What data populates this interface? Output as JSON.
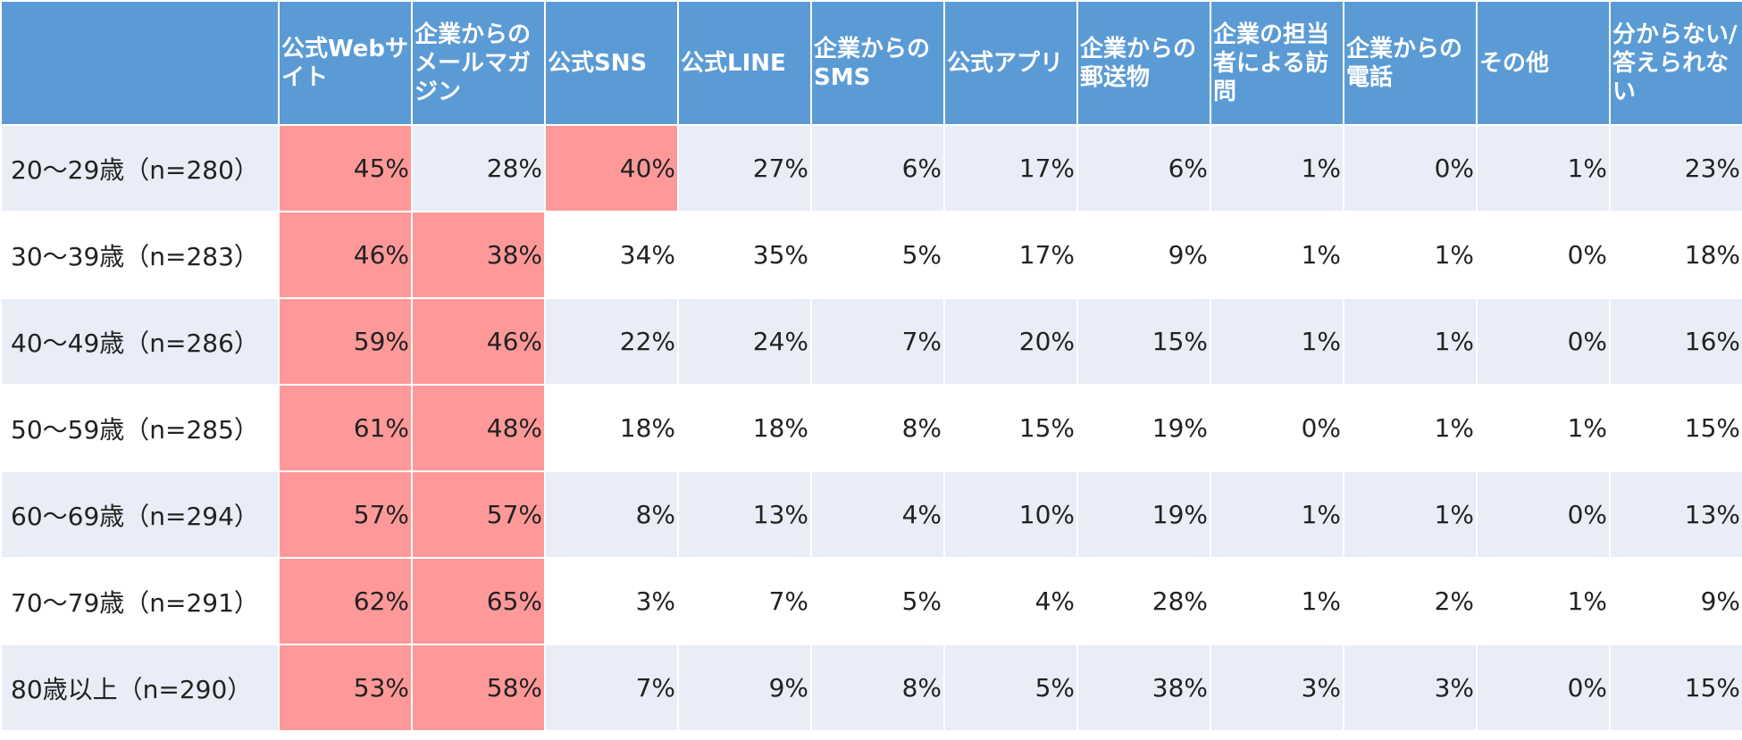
{
  "chart_data": {
    "type": "table",
    "highlight_color": "#ff9999",
    "header_color": "#5b9bd5",
    "stripe_color": "#e8edf7",
    "columns": [
      "公式Webサイト",
      "企業からのメールマガジン",
      "公式SNS",
      "公式LINE",
      "企業からのSMS",
      "公式アプリ",
      "企業からの郵送物",
      "企業の担当者による訪問",
      "企業からの電話",
      "その他",
      "分からない/答えられない"
    ],
    "rows": [
      {
        "label": "20～29歳（n=280）",
        "values": [
          "45%",
          "28%",
          "40%",
          "27%",
          "6%",
          "17%",
          "6%",
          "1%",
          "0%",
          "1%",
          "23%"
        ],
        "highlight": [
          0,
          2
        ]
      },
      {
        "label": "30～39歳（n=283）",
        "values": [
          "46%",
          "38%",
          "34%",
          "35%",
          "5%",
          "17%",
          "9%",
          "1%",
          "1%",
          "0%",
          "18%"
        ],
        "highlight": [
          0,
          1
        ]
      },
      {
        "label": "40～49歳（n=286）",
        "values": [
          "59%",
          "46%",
          "22%",
          "24%",
          "7%",
          "20%",
          "15%",
          "1%",
          "1%",
          "0%",
          "16%"
        ],
        "highlight": [
          0,
          1
        ]
      },
      {
        "label": "50～59歳（n=285）",
        "values": [
          "61%",
          "48%",
          "18%",
          "18%",
          "8%",
          "15%",
          "19%",
          "0%",
          "1%",
          "1%",
          "15%"
        ],
        "highlight": [
          0,
          1
        ]
      },
      {
        "label": "60～69歳（n=294）",
        "values": [
          "57%",
          "57%",
          "8%",
          "13%",
          "4%",
          "10%",
          "19%",
          "1%",
          "1%",
          "0%",
          "13%"
        ],
        "highlight": [
          0,
          1
        ]
      },
      {
        "label": "70～79歳（n=291）",
        "values": [
          "62%",
          "65%",
          "3%",
          "7%",
          "5%",
          "4%",
          "28%",
          "1%",
          "2%",
          "1%",
          "9%"
        ],
        "highlight": [
          0,
          1
        ]
      },
      {
        "label": "80歳以上（n=290）",
        "values": [
          "53%",
          "58%",
          "7%",
          "9%",
          "8%",
          "5%",
          "38%",
          "3%",
          "3%",
          "0%",
          "15%"
        ],
        "highlight": [
          0,
          1
        ]
      }
    ]
  }
}
